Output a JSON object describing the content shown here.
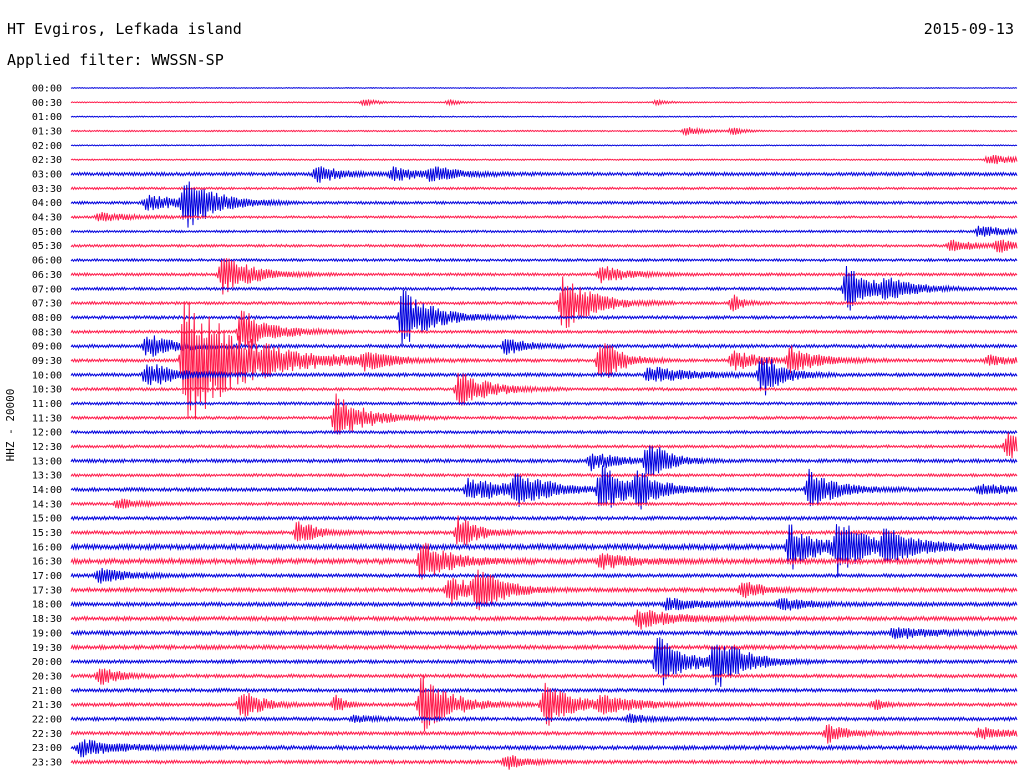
{
  "header": {
    "station": "HT Evgiros, Lefkada island",
    "date": "2015-09-13",
    "filter": "Applied filter: WWSSN-SP"
  },
  "colors": {
    "even_row": "#0000dd",
    "odd_row": "#ff1a4a"
  },
  "chart_data": {
    "type": "line",
    "title": "",
    "ylabel": "HHZ - 20000",
    "xlabel": "",
    "grid": false,
    "row_labels": [
      "00:00",
      "00:30",
      "01:00",
      "01:30",
      "02:00",
      "02:30",
      "03:00",
      "03:30",
      "04:00",
      "04:30",
      "05:00",
      "05:30",
      "06:00",
      "06:30",
      "07:00",
      "07:30",
      "08:00",
      "08:30",
      "09:00",
      "09:30",
      "10:00",
      "10:30",
      "11:00",
      "11:30",
      "12:00",
      "12:30",
      "13:00",
      "13:30",
      "14:00",
      "14:30",
      "15:00",
      "15:30",
      "16:00",
      "16:30",
      "17:00",
      "17:30",
      "18:00",
      "18:30",
      "19:00",
      "19:30",
      "20:00",
      "20:30",
      "21:00",
      "21:30",
      "22:00",
      "22:30",
      "23:00",
      "23:30"
    ],
    "row_noise": [
      0.3,
      0.4,
      0.4,
      0.5,
      0.4,
      0.5,
      1.2,
      0.8,
      1.0,
      0.8,
      0.8,
      0.9,
      0.9,
      1.0,
      1.0,
      1.0,
      1.1,
      1.0,
      1.2,
      1.1,
      1.2,
      1.0,
      1.0,
      1.0,
      1.0,
      1.0,
      1.2,
      1.0,
      1.2,
      1.0,
      1.2,
      1.2,
      1.8,
      1.8,
      1.2,
      1.4,
      1.4,
      1.4,
      1.4,
      1.4,
      1.2,
      1.2,
      1.2,
      1.2,
      1.2,
      1.2,
      1.4,
      1.2
    ],
    "events": [
      {
        "row": 1,
        "t": 0.31,
        "amp": 4,
        "dur": 0.012
      },
      {
        "row": 1,
        "t": 0.4,
        "amp": 3,
        "dur": 0.01
      },
      {
        "row": 1,
        "t": 0.62,
        "amp": 3,
        "dur": 0.01
      },
      {
        "row": 3,
        "t": 0.65,
        "amp": 4,
        "dur": 0.02
      },
      {
        "row": 3,
        "t": 0.7,
        "amp": 4,
        "dur": 0.01
      },
      {
        "row": 5,
        "t": 0.97,
        "amp": 5,
        "dur": 0.04
      },
      {
        "row": 6,
        "t": 0.26,
        "amp": 9,
        "dur": 0.025
      },
      {
        "row": 6,
        "t": 0.34,
        "amp": 7,
        "dur": 0.03
      },
      {
        "row": 6,
        "t": 0.38,
        "amp": 7,
        "dur": 0.03
      },
      {
        "row": 8,
        "t": 0.08,
        "amp": 8,
        "dur": 0.04
      },
      {
        "row": 8,
        "t": 0.12,
        "amp": 30,
        "dur": 0.03
      },
      {
        "row": 9,
        "t": 0.03,
        "amp": 5,
        "dur": 0.03
      },
      {
        "row": 10,
        "t": 0.96,
        "amp": 7,
        "dur": 0.03
      },
      {
        "row": 11,
        "t": 0.93,
        "amp": 6,
        "dur": 0.03
      },
      {
        "row": 11,
        "t": 0.98,
        "amp": 7,
        "dur": 0.02
      },
      {
        "row": 13,
        "t": 0.16,
        "amp": 22,
        "dur": 0.03
      },
      {
        "row": 13,
        "t": 0.56,
        "amp": 9,
        "dur": 0.03
      },
      {
        "row": 14,
        "t": 0.82,
        "amp": 24,
        "dur": 0.03
      },
      {
        "row": 14,
        "t": 0.86,
        "amp": 8,
        "dur": 0.03
      },
      {
        "row": 15,
        "t": 0.52,
        "amp": 30,
        "dur": 0.03
      },
      {
        "row": 15,
        "t": 0.7,
        "amp": 10,
        "dur": 0.01
      },
      {
        "row": 16,
        "t": 0.35,
        "amp": 30,
        "dur": 0.03
      },
      {
        "row": 17,
        "t": 0.18,
        "amp": 24,
        "dur": 0.03
      },
      {
        "row": 18,
        "t": 0.08,
        "amp": 12,
        "dur": 0.03
      },
      {
        "row": 18,
        "t": 0.46,
        "amp": 10,
        "dur": 0.02
      },
      {
        "row": 19,
        "t": 0.12,
        "amp": 70,
        "dur": 0.06
      },
      {
        "row": 19,
        "t": 0.31,
        "amp": 9,
        "dur": 0.03
      },
      {
        "row": 19,
        "t": 0.56,
        "amp": 28,
        "dur": 0.02
      },
      {
        "row": 19,
        "t": 0.7,
        "amp": 10,
        "dur": 0.03
      },
      {
        "row": 19,
        "t": 0.76,
        "amp": 14,
        "dur": 0.03
      },
      {
        "row": 19,
        "t": 0.97,
        "amp": 5,
        "dur": 0.03
      },
      {
        "row": 20,
        "t": 0.08,
        "amp": 14,
        "dur": 0.03
      },
      {
        "row": 20,
        "t": 0.61,
        "amp": 8,
        "dur": 0.05
      },
      {
        "row": 20,
        "t": 0.73,
        "amp": 24,
        "dur": 0.02
      },
      {
        "row": 21,
        "t": 0.41,
        "amp": 20,
        "dur": 0.03
      },
      {
        "row": 23,
        "t": 0.28,
        "amp": 26,
        "dur": 0.03
      },
      {
        "row": 25,
        "t": 0.99,
        "amp": 14,
        "dur": 0.02
      },
      {
        "row": 26,
        "t": 0.55,
        "amp": 10,
        "dur": 0.03
      },
      {
        "row": 26,
        "t": 0.61,
        "amp": 22,
        "dur": 0.02
      },
      {
        "row": 28,
        "t": 0.42,
        "amp": 12,
        "dur": 0.05
      },
      {
        "row": 28,
        "t": 0.47,
        "amp": 18,
        "dur": 0.03
      },
      {
        "row": 28,
        "t": 0.56,
        "amp": 24,
        "dur": 0.03
      },
      {
        "row": 28,
        "t": 0.6,
        "amp": 20,
        "dur": 0.02
      },
      {
        "row": 28,
        "t": 0.78,
        "amp": 20,
        "dur": 0.03
      },
      {
        "row": 28,
        "t": 0.96,
        "amp": 6,
        "dur": 0.04
      },
      {
        "row": 29,
        "t": 0.05,
        "amp": 6,
        "dur": 0.02
      },
      {
        "row": 31,
        "t": 0.24,
        "amp": 14,
        "dur": 0.02
      },
      {
        "row": 31,
        "t": 0.41,
        "amp": 18,
        "dur": 0.02
      },
      {
        "row": 32,
        "t": 0.76,
        "amp": 24,
        "dur": 0.03
      },
      {
        "row": 32,
        "t": 0.81,
        "amp": 26,
        "dur": 0.03
      },
      {
        "row": 32,
        "t": 0.86,
        "amp": 14,
        "dur": 0.04
      },
      {
        "row": 33,
        "t": 0.37,
        "amp": 20,
        "dur": 0.03
      },
      {
        "row": 33,
        "t": 0.56,
        "amp": 8,
        "dur": 0.03
      },
      {
        "row": 34,
        "t": 0.03,
        "amp": 8,
        "dur": 0.03
      },
      {
        "row": 35,
        "t": 0.4,
        "amp": 14,
        "dur": 0.04
      },
      {
        "row": 35,
        "t": 0.43,
        "amp": 22,
        "dur": 0.02
      },
      {
        "row": 35,
        "t": 0.71,
        "amp": 10,
        "dur": 0.02
      },
      {
        "row": 36,
        "t": 0.63,
        "amp": 6,
        "dur": 0.04
      },
      {
        "row": 36,
        "t": 0.75,
        "amp": 6,
        "dur": 0.03
      },
      {
        "row": 37,
        "t": 0.6,
        "amp": 10,
        "dur": 0.04
      },
      {
        "row": 38,
        "t": 0.87,
        "amp": 6,
        "dur": 0.04
      },
      {
        "row": 40,
        "t": 0.62,
        "amp": 28,
        "dur": 0.03
      },
      {
        "row": 40,
        "t": 0.68,
        "amp": 26,
        "dur": 0.03
      },
      {
        "row": 41,
        "t": 0.03,
        "amp": 10,
        "dur": 0.02
      },
      {
        "row": 43,
        "t": 0.18,
        "amp": 18,
        "dur": 0.02
      },
      {
        "row": 43,
        "t": 0.28,
        "amp": 10,
        "dur": 0.01
      },
      {
        "row": 43,
        "t": 0.37,
        "amp": 30,
        "dur": 0.03
      },
      {
        "row": 43,
        "t": 0.5,
        "amp": 24,
        "dur": 0.03
      },
      {
        "row": 43,
        "t": 0.56,
        "amp": 8,
        "dur": 0.04
      },
      {
        "row": 43,
        "t": 0.85,
        "amp": 6,
        "dur": 0.01
      },
      {
        "row": 44,
        "t": 0.3,
        "amp": 4,
        "dur": 0.02
      },
      {
        "row": 44,
        "t": 0.59,
        "amp": 5,
        "dur": 0.02
      },
      {
        "row": 45,
        "t": 0.8,
        "amp": 10,
        "dur": 0.02
      },
      {
        "row": 45,
        "t": 0.96,
        "amp": 6,
        "dur": 0.04
      },
      {
        "row": 46,
        "t": 0.01,
        "amp": 9,
        "dur": 0.04
      },
      {
        "row": 47,
        "t": 0.46,
        "amp": 8,
        "dur": 0.02
      }
    ]
  }
}
